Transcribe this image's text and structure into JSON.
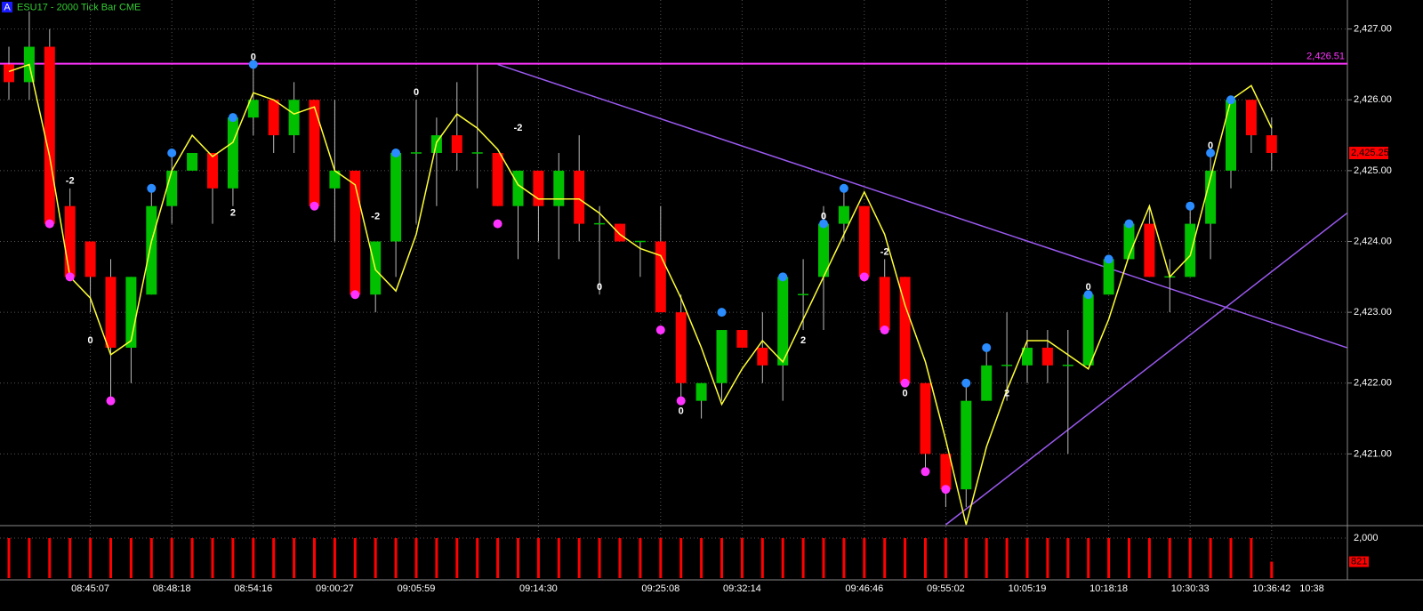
{
  "chart_data": [
    {
      "type": "candlestick",
      "badge": "A",
      "title": "ESU17 - 2000 Tick Bar  CME",
      "categories": [
        null,
        null,
        null,
        null,
        "08:45:07",
        null,
        null,
        null,
        "08:48:18",
        null,
        null,
        null,
        "08:54:16",
        null,
        null,
        null,
        "09:00:27",
        null,
        null,
        null,
        "09:05:59",
        null,
        null,
        null,
        null,
        null,
        "09:14:30",
        null,
        null,
        null,
        null,
        null,
        "09:25:08",
        null,
        null,
        null,
        "09:32:14",
        null,
        null,
        null,
        null,
        null,
        "09:46:46",
        null,
        null,
        null,
        "09:55:02",
        null,
        null,
        null,
        "10:05:19",
        null,
        null,
        null,
        "10:18:18",
        null,
        null,
        null,
        "10:30:33",
        null,
        null,
        null,
        "10:36:42"
      ],
      "end_label": "10:38",
      "open": [
        2426.5,
        2426.25,
        2426.75,
        2424.5,
        2424.0,
        2423.5,
        2422.5,
        2423.25,
        2424.5,
        2425.0,
        2425.25,
        2424.75,
        2425.75,
        2426.0,
        2425.5,
        2426.0,
        2424.75,
        2425.0,
        2423.25,
        2424.0,
        2425.25,
        2425.25,
        2425.5,
        2425.25,
        2425.25,
        2424.5,
        2425.0,
        2424.5,
        2425.0,
        2424.25,
        2424.25,
        2424.0,
        2424.0,
        2423.0,
        2421.75,
        2422.0,
        2422.75,
        2422.5,
        2422.25,
        2423.25,
        2423.5,
        2424.25,
        2424.5,
        2423.5,
        2423.5,
        2422.0,
        2421.0,
        2420.5,
        2421.75,
        2422.25,
        2422.25,
        2422.5,
        2422.25,
        2422.25,
        2423.25,
        2423.75,
        2424.25,
        2423.5,
        2423.5,
        2424.25,
        2425.0,
        2426.0,
        2425.5
      ],
      "high": [
        2426.75,
        2427.25,
        2427.0,
        2424.75,
        2424.0,
        2423.75,
        2423.5,
        2424.75,
        2425.25,
        2425.25,
        2425.25,
        2425.75,
        2426.5,
        2426.0,
        2426.25,
        2426.0,
        2426.0,
        2425.0,
        2424.0,
        2425.25,
        2426.0,
        2425.75,
        2426.25,
        2426.5,
        2425.25,
        2425.0,
        2425.0,
        2425.25,
        2425.5,
        2424.5,
        2424.25,
        2424.0,
        2424.5,
        2423.25,
        2422.0,
        2422.75,
        2422.75,
        2423.0,
        2423.5,
        2423.75,
        2424.5,
        2424.75,
        2424.5,
        2423.75,
        2423.5,
        2422.0,
        2421.0,
        2422.0,
        2422.5,
        2423.0,
        2422.75,
        2422.75,
        2422.75,
        2423.25,
        2423.75,
        2424.25,
        2424.5,
        2423.75,
        2424.5,
        2425.25,
        2426.0,
        2426.0,
        2425.75
      ],
      "low": [
        2426.0,
        2426.0,
        2424.25,
        2423.5,
        2423.0,
        2421.75,
        2422.0,
        2423.25,
        2424.25,
        2425.0,
        2424.25,
        2424.5,
        2425.5,
        2425.25,
        2425.25,
        2424.5,
        2424.0,
        2423.25,
        2423.0,
        2423.5,
        2424.25,
        2424.5,
        2425.0,
        2424.75,
        2424.5,
        2423.75,
        2424.0,
        2423.75,
        2424.0,
        2423.25,
        2424.0,
        2423.5,
        2423.0,
        2421.75,
        2421.5,
        2421.75,
        2422.5,
        2422.0,
        2421.75,
        2422.75,
        2422.75,
        2424.0,
        2423.5,
        2422.75,
        2422.0,
        2420.75,
        2420.25,
        2420.25,
        2421.75,
        2421.75,
        2422.0,
        2422.0,
        2421.0,
        2422.25,
        2423.25,
        2423.75,
        2423.5,
        2423.0,
        2423.5,
        2423.75,
        2424.75,
        2425.25,
        2425.0
      ],
      "close": [
        2426.25,
        2426.75,
        2424.25,
        2423.5,
        2423.5,
        2422.5,
        2423.5,
        2424.5,
        2425.0,
        2425.25,
        2424.75,
        2425.75,
        2426.0,
        2425.5,
        2426.0,
        2424.5,
        2425.0,
        2423.25,
        2424.0,
        2425.25,
        2425.25,
        2425.5,
        2425.25,
        2425.25,
        2424.5,
        2425.0,
        2424.5,
        2425.0,
        2424.25,
        2424.25,
        2424.0,
        2424.0,
        2423.0,
        2422.0,
        2422.0,
        2422.75,
        2422.5,
        2422.25,
        2423.5,
        2423.25,
        2424.25,
        2424.5,
        2423.5,
        2422.75,
        2422.0,
        2421.0,
        2420.5,
        2421.75,
        2422.25,
        2422.25,
        2422.5,
        2422.25,
        2422.25,
        2423.25,
        2423.75,
        2424.25,
        2423.5,
        2423.5,
        2424.25,
        2425.0,
        2426.0,
        2425.5,
        2425.25
      ],
      "up_color": "#00c000",
      "down_color": "#ff0000",
      "line": {
        "color": "#ffff33",
        "values": [
          2426.4,
          2426.5,
          2425.2,
          2423.5,
          2423.2,
          2422.4,
          2422.6,
          2424.0,
          2425.0,
          2425.5,
          2425.2,
          2425.4,
          2426.1,
          2426.0,
          2425.8,
          2425.9,
          2425.0,
          2424.8,
          2423.6,
          2423.3,
          2424.1,
          2425.4,
          2425.8,
          2425.6,
          2425.3,
          2424.8,
          2424.6,
          2424.6,
          2424.6,
          2424.4,
          2424.1,
          2423.9,
          2423.8,
          2423.2,
          2422.5,
          2421.7,
          2422.2,
          2422.6,
          2422.3,
          2422.9,
          2423.5,
          2424.1,
          2424.7,
          2424.1,
          2423.1,
          2422.3,
          2421.2,
          2420.0,
          2421.1,
          2421.9,
          2422.6,
          2422.6,
          2422.4,
          2422.2,
          2422.9,
          2423.8,
          2424.5,
          2423.5,
          2423.8,
          2424.9,
          2426.0,
          2426.2,
          2425.6
        ]
      },
      "ylim": [
        2420.0,
        2427.41
      ],
      "yticks": [
        {
          "value": 2421,
          "label": "2,421.00"
        },
        {
          "value": 2422,
          "label": "2,422.00"
        },
        {
          "value": 2423,
          "label": "2,423.00"
        },
        {
          "value": 2424,
          "label": "2,424.00"
        },
        {
          "value": 2425,
          "label": "2,425.00"
        },
        {
          "value": 2426,
          "label": "2,426.00"
        },
        {
          "value": 2427,
          "label": "2,427.00"
        }
      ],
      "hline": {
        "value": 2426.51,
        "label": "2,426.51",
        "color": "#ff33ff"
      },
      "last_price": {
        "value": 2425.25,
        "label": "2,425.25",
        "color": "#ff0000"
      },
      "trendlines": [
        {
          "color": "#9b59f0",
          "x": [
            24,
            65.7
          ],
          "y": [
            2426.5,
            2422.5
          ]
        },
        {
          "color": "#9b59f0",
          "x": [
            46,
            65.7
          ],
          "y": [
            2420.0,
            2424.4
          ]
        }
      ],
      "markers": [
        {
          "color": "#2a8cff",
          "x": [
            7,
            8,
            11,
            12,
            19,
            35,
            38,
            40,
            41,
            47,
            48,
            53,
            54,
            55,
            58,
            59,
            60
          ],
          "y": [
            2424.75,
            2425.25,
            2425.75,
            2426.5,
            2425.25,
            2423.0,
            2423.5,
            2424.25,
            2424.75,
            2422.0,
            2422.5,
            2423.25,
            2423.75,
            2424.25,
            2424.5,
            2425.25,
            2426.0
          ]
        },
        {
          "color": "#ff33ff",
          "x": [
            2,
            3,
            5,
            15,
            17,
            24,
            32,
            33,
            42,
            43,
            44,
            45,
            46
          ],
          "y": [
            2424.25,
            2423.5,
            2421.75,
            2424.5,
            2423.25,
            2424.25,
            2422.75,
            2421.75,
            2423.5,
            2422.75,
            2422.0,
            2420.75,
            2420.5
          ]
        }
      ],
      "annotations": [
        {
          "x": 3,
          "y": 2424.85,
          "text": "-2"
        },
        {
          "x": 4,
          "y": 2422.6,
          "text": "0"
        },
        {
          "x": 12,
          "y": 2426.6,
          "text": "0"
        },
        {
          "x": 11,
          "y": 2424.4,
          "text": "2"
        },
        {
          "x": 20,
          "y": 2426.1,
          "text": "0"
        },
        {
          "x": 18,
          "y": 2424.35,
          "text": "-2"
        },
        {
          "x": 25,
          "y": 2425.6,
          "text": "-2"
        },
        {
          "x": 29,
          "y": 2423.35,
          "text": "0"
        },
        {
          "x": 33,
          "y": 2421.6,
          "text": "0"
        },
        {
          "x": 39,
          "y": 2422.6,
          "text": "2"
        },
        {
          "x": 40,
          "y": 2424.35,
          "text": "0"
        },
        {
          "x": 43,
          "y": 2423.85,
          "text": "-2"
        },
        {
          "x": 44,
          "y": 2421.85,
          "text": "0"
        },
        {
          "x": 49,
          "y": 2421.85,
          "text": "2"
        },
        {
          "x": 53,
          "y": 2423.35,
          "text": "0"
        },
        {
          "x": 59,
          "y": 2425.35,
          "text": "0"
        }
      ]
    },
    {
      "type": "bar",
      "color": "#ff0000",
      "values": [
        2000,
        2000,
        2000,
        2000,
        2000,
        2000,
        2000,
        2000,
        2000,
        2000,
        2000,
        2000,
        2000,
        2000,
        2000,
        2000,
        2000,
        2000,
        2000,
        2000,
        2000,
        2000,
        2000,
        2000,
        2000,
        2000,
        2000,
        2000,
        2000,
        2000,
        2000,
        2000,
        2000,
        2000,
        2000,
        2000,
        2000,
        2000,
        2000,
        2000,
        2000,
        2000,
        2000,
        2000,
        2000,
        2000,
        2000,
        2000,
        2000,
        2000,
        2000,
        2000,
        2000,
        2000,
        2000,
        2000,
        2000,
        2000,
        2000,
        2000,
        2000,
        2000,
        821
      ],
      "value_labels": [
        null,
        null,
        null,
        null,
        null,
        null,
        null,
        null,
        null,
        null,
        null,
        null,
        null,
        null,
        null,
        null,
        null,
        null,
        null,
        null,
        null,
        null,
        null,
        null,
        null,
        null,
        null,
        null,
        null,
        null,
        null,
        null,
        null,
        null,
        null,
        null,
        null,
        null,
        null,
        null,
        null,
        null,
        null,
        null,
        null,
        null,
        null,
        null,
        null,
        null,
        null,
        null,
        null,
        null,
        null,
        null,
        null,
        null,
        null,
        null,
        null,
        null,
        "821"
      ],
      "ylim": [
        0,
        2580
      ],
      "yticks": [
        {
          "value": 2000,
          "label": "2,000"
        }
      ]
    }
  ]
}
